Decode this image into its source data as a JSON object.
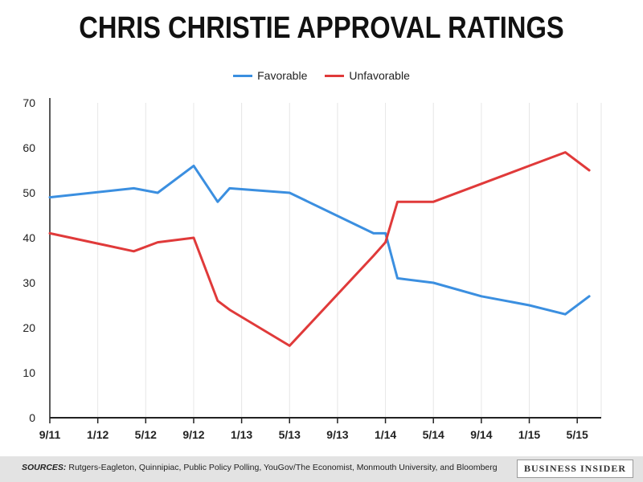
{
  "footer": {
    "sources_label": "SOURCES:",
    "sources_text": "Rutgers-Eagleton, Quinnipiac, Public Policy Polling, YouGov/The Economist, Monmouth University, and Bloomberg",
    "brand": "BUSINESS INSIDER"
  },
  "chart_data": {
    "type": "line",
    "title": "CHRIS CHRISTIE APPROVAL RATINGS",
    "xlabel": "",
    "ylabel": "",
    "ylim": [
      0,
      70
    ],
    "yticks": [
      0,
      10,
      20,
      30,
      40,
      50,
      60,
      70
    ],
    "xlim": [
      "2011-09",
      "2015-07"
    ],
    "xticks": [
      "9/11",
      "1/12",
      "5/12",
      "9/12",
      "1/13",
      "5/13",
      "9/13",
      "1/14",
      "5/14",
      "9/14",
      "1/15",
      "5/15"
    ],
    "xtick_dates": [
      "2011-09",
      "2012-01",
      "2012-05",
      "2012-09",
      "2013-01",
      "2013-05",
      "2013-09",
      "2014-01",
      "2014-05",
      "2014-09",
      "2015-01",
      "2015-05"
    ],
    "grid": "vertical",
    "legend": "top-center",
    "series": [
      {
        "name": "Favorable",
        "color": "#3b8fe0",
        "x": [
          "2011-09",
          "2012-04",
          "2012-06",
          "2012-09",
          "2012-11",
          "2012-12",
          "2013-05",
          "2013-12",
          "2014-01",
          "2014-02",
          "2014-05",
          "2014-09",
          "2015-01",
          "2015-04",
          "2015-06"
        ],
        "values": [
          49,
          51,
          50,
          56,
          48,
          51,
          50,
          41,
          41,
          31,
          30,
          27,
          25,
          23,
          27
        ]
      },
      {
        "name": "Unfavorable",
        "color": "#e03a3a",
        "x": [
          "2011-09",
          "2012-04",
          "2012-06",
          "2012-09",
          "2012-11",
          "2012-12",
          "2013-05",
          "2013-12",
          "2014-01",
          "2014-02",
          "2014-05",
          "2014-09",
          "2015-01",
          "2015-04",
          "2015-06"
        ],
        "values": [
          41,
          37,
          39,
          40,
          26,
          24,
          16,
          36,
          39,
          48,
          48,
          52,
          56,
          59,
          55
        ]
      }
    ]
  }
}
